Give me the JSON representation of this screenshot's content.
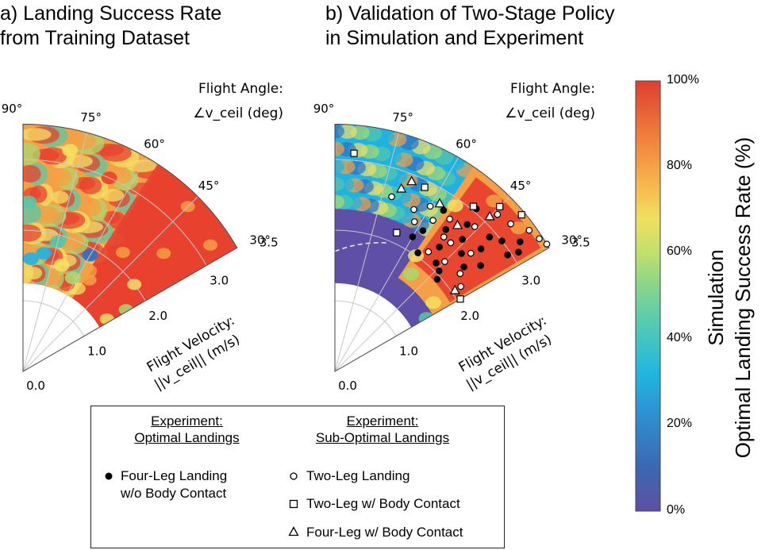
{
  "titles": {
    "a": "a) Landing Success Rate\nfrom Training Dataset",
    "b": "b) Validation of Two-Stage Policy\nin Simulation and Experiment"
  },
  "colors": {
    "dark": "#5f4fa6",
    "blue": "#2e70c4",
    "cyan": "#1fb3e3",
    "teal": "#55c8a8",
    "green": "#a8d870",
    "yellow": "#f3df63",
    "orange": "#f5a044",
    "red": "#e8412f",
    "boundary_line": "#e6e6e6",
    "grid": "#c8c8c8"
  },
  "chart_data": [
    {
      "type": "heatmap",
      "panel": "a",
      "title": "a) Landing Success Rate from Training Dataset",
      "coordinate_system": "polar (angle = flight angle, radius = flight velocity)",
      "angle_label": "Flight Angle:",
      "angle_symbol": "∠v_ceil (deg)",
      "radius_label": "Flight Velocity:",
      "radius_symbol": "||v_ceil|| (m/s)",
      "angle_ticks": [
        "90°",
        "75°",
        "60°",
        "45°",
        "30°"
      ],
      "radius_ticks": [
        "0.0",
        "1.0",
        "2.0",
        "3.0",
        "3.5"
      ],
      "angle_range_deg": [
        30,
        90
      ],
      "radius_range": [
        1.25,
        3.5
      ],
      "description_of_values": "Mostly 70–100% success; mixed 40–80% at high angles and low velocity",
      "value_regions": [
        {
          "angle_deg": [
            55,
            90
          ],
          "velocity": [
            1.25,
            3.5
          ],
          "approx_success_pct": 70
        },
        {
          "angle_deg": [
            30,
            55
          ],
          "velocity": [
            1.25,
            3.5
          ],
          "approx_success_pct": 92
        }
      ]
    },
    {
      "type": "heatmap",
      "panel": "b",
      "title": "b) Validation of Two-Stage Policy in Simulation and Experiment",
      "coordinate_system": "polar (angle = flight angle, radius = flight velocity)",
      "angle_label": "Flight Angle:",
      "angle_symbol": "∠v_ceil (deg)",
      "radius_label": "Flight Velocity:",
      "radius_symbol": "||v_ceil|| (m/s)",
      "angle_ticks": [
        "90°",
        "75°",
        "60°",
        "45°",
        "30°"
      ],
      "radius_ticks": [
        "0.0",
        "1.0",
        "2.0",
        "3.0",
        "3.5"
      ],
      "angle_range_deg": [
        30,
        90
      ],
      "radius_range": [
        1.25,
        3.5
      ],
      "value_regions": [
        {
          "angle_deg": [
            65,
            90
          ],
          "velocity": [
            1.25,
            2.0
          ],
          "approx_success_pct": 8
        },
        {
          "angle_deg": [
            55,
            90
          ],
          "velocity": [
            2.0,
            3.5
          ],
          "approx_success_pct": 45
        },
        {
          "angle_deg": [
            30,
            55
          ],
          "velocity": [
            1.5,
            3.5
          ],
          "approx_success_pct": 88
        }
      ],
      "experiment_points": {
        "four_leg_no_contact": [
          {
            "angle": 40,
            "v": 2.7
          },
          {
            "angle": 41,
            "v": 2.9
          },
          {
            "angle": 38,
            "v": 3.0
          },
          {
            "angle": 46,
            "v": 2.6
          },
          {
            "angle": 43,
            "v": 2.45
          },
          {
            "angle": 48,
            "v": 2.8
          },
          {
            "angle": 36,
            "v": 2.55
          },
          {
            "angle": 50,
            "v": 2.3
          },
          {
            "angle": 52,
            "v": 2.55
          },
          {
            "angle": 39,
            "v": 2.35
          },
          {
            "angle": 55,
            "v": 2.05
          },
          {
            "angle": 47,
            "v": 2.1
          },
          {
            "angle": 44,
            "v": 2.05
          },
          {
            "angle": 33,
            "v": 3.1
          },
          {
            "angle": 35,
            "v": 3.2
          },
          {
            "angle": 58,
            "v": 2.35
          },
          {
            "angle": 42,
            "v": 1.95
          },
          {
            "angle": 34,
            "v": 2.95
          },
          {
            "angle": 49,
            "v": 3.05
          },
          {
            "angle": 56,
            "v": 2.75
          },
          {
            "angle": 60,
            "v": 2.2
          }
        ],
        "two_leg": [
          {
            "angle": 72,
            "v": 2.6
          },
          {
            "angle": 64,
            "v": 2.55
          },
          {
            "angle": 62,
            "v": 2.4
          },
          {
            "angle": 60,
            "v": 2.7
          },
          {
            "angle": 57,
            "v": 2.55
          },
          {
            "angle": 53,
            "v": 2.7
          },
          {
            "angle": 48,
            "v": 2.45
          },
          {
            "angle": 46,
            "v": 2.85
          },
          {
            "angle": 44,
            "v": 3.2
          },
          {
            "angle": 40,
            "v": 3.25
          },
          {
            "angle": 36,
            "v": 3.4
          },
          {
            "angle": 33,
            "v": 3.45
          },
          {
            "angle": 31,
            "v": 3.5
          },
          {
            "angle": 52,
            "v": 2.15
          },
          {
            "angle": 45,
            "v": 2.2
          },
          {
            "angle": 41,
            "v": 2.55
          },
          {
            "angle": 38,
            "v": 2.25
          },
          {
            "angle": 34,
            "v": 2.15
          },
          {
            "angle": 51,
            "v": 2.45
          }
        ],
        "two_leg_body_contact": [
          {
            "angle": 85,
            "v": 3.1
          },
          {
            "angle": 66,
            "v": 2.15
          },
          {
            "angle": 64,
            "v": 2.9
          },
          {
            "angle": 50,
            "v": 3.05
          },
          {
            "angle": 45,
            "v": 3.3
          },
          {
            "angle": 40,
            "v": 3.45
          },
          {
            "angle": 30,
            "v": 2.05
          }
        ],
        "four_leg_body_contact": [
          {
            "angle": 70,
            "v": 2.75
          },
          {
            "angle": 68,
            "v": 2.9
          },
          {
            "angle": 58,
            "v": 2.8
          },
          {
            "angle": 50,
            "v": 2.7
          },
          {
            "angle": 45,
            "v": 3.1
          },
          {
            "angle": 34,
            "v": 2.05
          }
        ]
      }
    },
    {
      "type": "colorbar",
      "ticks": [
        "0%",
        "20%",
        "40%",
        "60%",
        "80%",
        "100%"
      ],
      "range": [
        0,
        100
      ],
      "label_line1": "Simulation",
      "label_line2": "Optimal Landing Success Rate (%)"
    }
  ],
  "legend": {
    "optimal_header": "Experiment:\nOptimal Landings",
    "suboptimal_header": "Experiment:\nSub-Optimal Landings",
    "items": {
      "four_leg": "Four-Leg Landing\nw/o Body Contact",
      "two_leg": "Two-Leg Landing",
      "two_leg_body": "Two-Leg w/ Body Contact",
      "four_leg_body": "Four-Leg w/ Body Contact"
    }
  },
  "colorbar_title": "Simulation\nOptimal Landing Success Rate (%)"
}
